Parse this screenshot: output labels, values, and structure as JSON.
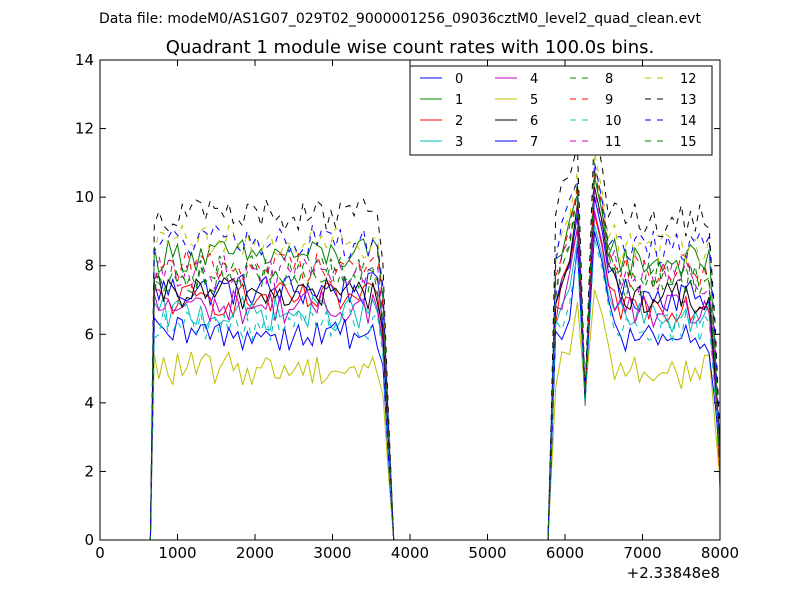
{
  "chart_data": {
    "type": "line",
    "suptitle": "Data file: modeM0/AS1G07_029T02_9000001256_09036cztM0_level2_quad_clean.evt",
    "title": "Quadrant 1 module wise count rates with 100.0s bins.",
    "xlabel": "",
    "ylabel": "",
    "x_offset_label": "+2.33848e8",
    "xlim": [
      0,
      8000
    ],
    "ylim": [
      0,
      14
    ],
    "xticks": [
      "0",
      "1000",
      "2000",
      "3000",
      "4000",
      "5000",
      "6000",
      "7000",
      "8000"
    ],
    "yticks": [
      "0",
      "2",
      "4",
      "6",
      "8",
      "10",
      "12",
      "14"
    ],
    "legend_position": "top-right",
    "legend_columns": 4,
    "segments": [
      [
        700,
        3800
      ],
      [
        5800,
        8000
      ]
    ],
    "series": [
      {
        "name": "0",
        "color": "#0000ff",
        "style": "solid",
        "level": 7.3,
        "peak": 10.0
      },
      {
        "name": "1",
        "color": "#008000",
        "style": "solid",
        "level": 8.3,
        "peak": 10.6
      },
      {
        "name": "2",
        "color": "#ff0000",
        "style": "solid",
        "level": 7.0,
        "peak": 9.5
      },
      {
        "name": "3",
        "color": "#00bfbf",
        "style": "solid",
        "level": 6.6,
        "peak": 9.2
      },
      {
        "name": "4",
        "color": "#bf00bf",
        "style": "solid",
        "level": 6.8,
        "peak": 9.6
      },
      {
        "name": "5",
        "color": "#bfbf00",
        "style": "solid",
        "level": 5.0,
        "peak": 7.3
      },
      {
        "name": "6",
        "color": "#000000",
        "style": "solid",
        "level": 7.2,
        "peak": 10.3
      },
      {
        "name": "7",
        "color": "#0000ff",
        "style": "solid",
        "level": 6.0,
        "peak": 9.0
      },
      {
        "name": "8",
        "color": "#008000",
        "style": "dashed",
        "level": 7.7,
        "peak": 11.0
      },
      {
        "name": "9",
        "color": "#ff0000",
        "style": "dashed",
        "level": 8.0,
        "peak": 10.8
      },
      {
        "name": "10",
        "color": "#00bfbf",
        "style": "dashed",
        "level": 6.3,
        "peak": 8.8
      },
      {
        "name": "11",
        "color": "#bf00bf",
        "style": "dashed",
        "level": 7.8,
        "peak": 10.2
      },
      {
        "name": "12",
        "color": "#bfbf00",
        "style": "dashed",
        "level": 8.7,
        "peak": 11.3
      },
      {
        "name": "13",
        "color": "#000000",
        "style": "dashed",
        "level": 9.5,
        "peak": 12.1
      },
      {
        "name": "14",
        "color": "#0000ff",
        "style": "dashed",
        "level": 8.7,
        "peak": 11.0
      },
      {
        "name": "15",
        "color": "#008000",
        "style": "dashed",
        "level": 7.8,
        "peak": 10.7
      }
    ]
  }
}
